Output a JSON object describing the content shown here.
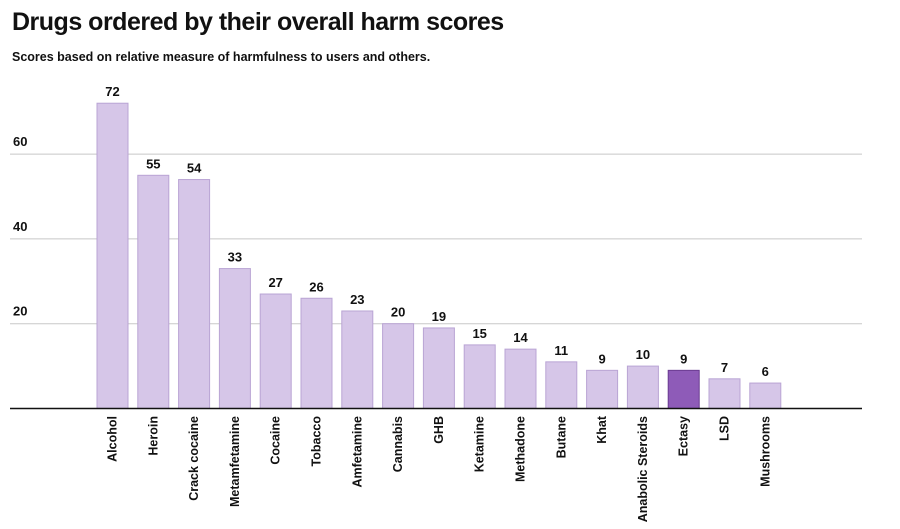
{
  "title": "Drugs ordered by their overall harm scores",
  "subtitle": "Scores based on relative measure of harmfulness to users and others.",
  "colors": {
    "bar": "#d6c6e8",
    "bar_stroke": "#b9a4d4",
    "highlight": "#8e5bb8",
    "highlight_stroke": "#6a3b91",
    "grid": "#c8c8c8",
    "axis": "#111111",
    "text": "#111111"
  },
  "chart_data": {
    "type": "bar",
    "categories": [
      "Alcohol",
      "Heroin",
      "Crack cocaine",
      "Metamfetamine",
      "Cocaine",
      "Tobacco",
      "Amfetamine",
      "Cannabis",
      "GHB",
      "Ketamine",
      "Methadone",
      "Butane",
      "Khat",
      "Anabolic Steroids",
      "Ectasy",
      "LSD",
      "Mushrooms"
    ],
    "values": [
      72,
      55,
      54,
      33,
      27,
      26,
      23,
      20,
      19,
      15,
      14,
      11,
      9,
      10,
      9,
      7,
      6
    ],
    "highlighted_category": "Ectasy",
    "yticks": [
      20,
      40,
      60
    ],
    "ylim": [
      0,
      72
    ],
    "grid": true,
    "xlabel": "",
    "ylabel": ""
  }
}
